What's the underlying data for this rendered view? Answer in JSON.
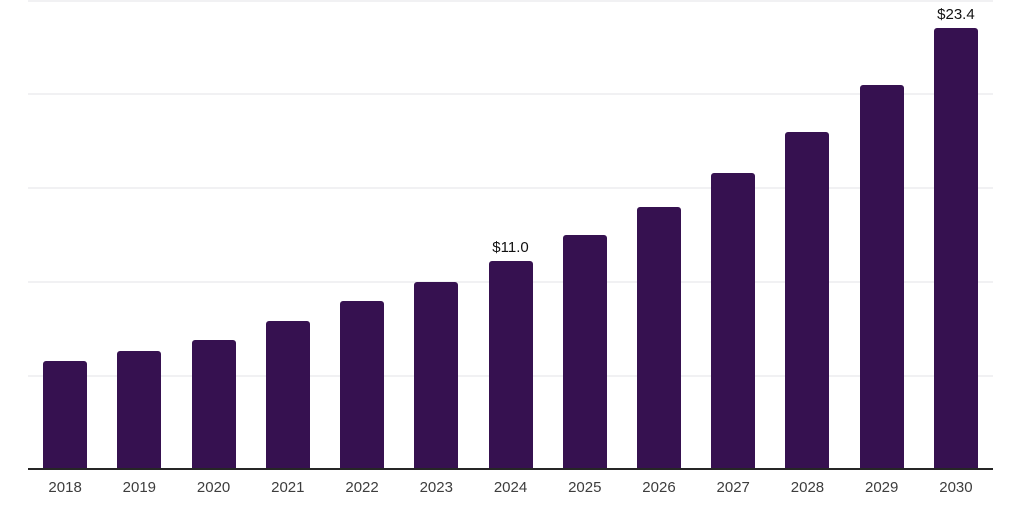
{
  "chart_data": {
    "type": "bar",
    "title": "",
    "xlabel": "",
    "ylabel": "",
    "categories": [
      "2018",
      "2019",
      "2020",
      "2021",
      "2022",
      "2023",
      "2024",
      "2025",
      "2026",
      "2027",
      "2028",
      "2029",
      "2030"
    ],
    "values": [
      5.7,
      6.2,
      6.8,
      7.8,
      8.9,
      9.9,
      11.0,
      12.4,
      13.9,
      15.7,
      17.9,
      20.4,
      23.4
    ],
    "data_labels": [
      "",
      "",
      "",
      "",
      "",
      "",
      "$11.0",
      "",
      "",
      "",
      "",
      "",
      "$23.4"
    ],
    "ylim": [
      0,
      25
    ],
    "gridline_values": [
      5,
      10,
      15,
      20,
      25
    ],
    "grid": "on",
    "legend": "none",
    "colors": {
      "bar": "#361150",
      "gridline": "#f1f1f3",
      "axis_line": "#262626",
      "tick_label": "#3d3d3d",
      "value_label": "#111111",
      "background": "#ffffff"
    }
  }
}
